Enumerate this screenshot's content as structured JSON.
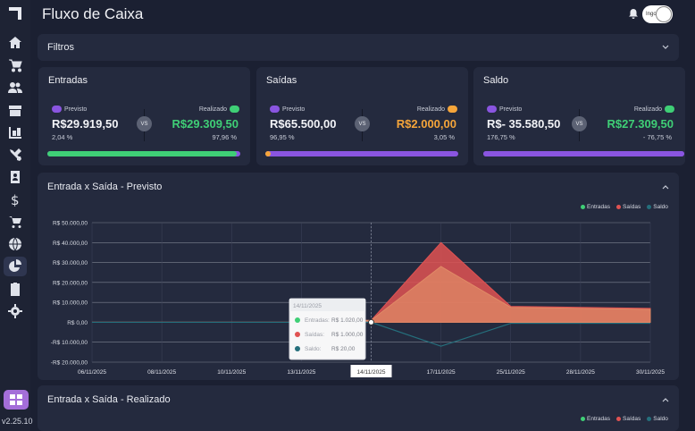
{
  "header": {
    "title": "Fluxo de Caixa",
    "user_name": "Ingor"
  },
  "sidebar": {
    "version": "v2.25.10"
  },
  "filters": {
    "title": "Filtros"
  },
  "cards": [
    {
      "title": "Entradas",
      "previsto_label": "Previsto",
      "previsto_value": "R$29.919,50",
      "previsto_pct": "2,04 %",
      "realizado_label": "Realizado",
      "realizado_value": "R$29.309,50",
      "realizado_pct": "97,96 %",
      "realizado_color": "#3fcf76"
    },
    {
      "title": "Saídas",
      "previsto_label": "Previsto",
      "previsto_value": "R$65.500,00",
      "previsto_pct": "96,95 %",
      "realizado_label": "Realizado",
      "realizado_value": "R$2.000,00",
      "realizado_pct": "3,05 %",
      "realizado_color": "#f5a53a"
    },
    {
      "title": "Saldo",
      "previsto_label": "Previsto",
      "previsto_value": "R$- 35.580,50",
      "previsto_pct": "176,75 %",
      "realizado_label": "Realizado",
      "realizado_value": "R$27.309,50",
      "realizado_pct": "- 76,75 %",
      "realizado_color": "#3fcf76"
    }
  ],
  "vs_label": "VS",
  "colors": {
    "purple": "#8a55e0",
    "green": "#3fcf76",
    "orange": "#f5a53a",
    "red": "#e05252",
    "teal": "#256f7c"
  },
  "chart_data": [
    {
      "type": "area",
      "title": "Entrada x Saída - Previsto",
      "x": [
        "06/11/2025",
        "08/11/2025",
        "10/11/2025",
        "13/11/2025",
        "14/11/2025",
        "17/11/2025",
        "25/11/2025",
        "28/11/2025",
        "30/11/2025"
      ],
      "ylim": [
        -20000,
        50000
      ],
      "yticks": [
        "R$ 50.000,00",
        "R$ 40.000,00",
        "R$ 30.000,00",
        "R$ 20.000,00",
        "R$ 10.000,00",
        "R$ 0,00",
        "-R$ 10.000,00",
        "-R$ 20.000,00"
      ],
      "ytick_values": [
        50000,
        40000,
        30000,
        20000,
        10000,
        0,
        -10000,
        -20000
      ],
      "series": [
        {
          "name": "Entradas",
          "color": "#3fcf76",
          "values": [
            0,
            0,
            0,
            0,
            1020,
            28000,
            7500,
            7000,
            6500
          ]
        },
        {
          "name": "Saídas",
          "color": "#e05252",
          "values": [
            0,
            0,
            0,
            0,
            1000,
            40000,
            8000,
            7500,
            7000
          ]
        },
        {
          "name": "Saldo",
          "color": "#256f7c",
          "values": [
            0,
            0,
            0,
            0,
            20,
            -12000,
            -500,
            -500,
            -500
          ]
        }
      ],
      "tooltip": {
        "date": "14/11/2025",
        "rows": [
          {
            "label": "Entradas:",
            "value": "R$ 1.020,00"
          },
          {
            "label": "Saídas:",
            "value": "R$ 1.000,00"
          },
          {
            "label": "Saldo:",
            "value": "R$ 20,00"
          }
        ]
      },
      "legend": "top-right",
      "grid": true
    },
    {
      "type": "area",
      "title": "Entrada x Saída - Realizado",
      "series": [
        {
          "name": "Entradas",
          "color": "#3fcf76"
        },
        {
          "name": "Saídas",
          "color": "#e05252"
        },
        {
          "name": "Saldo",
          "color": "#256f7c"
        }
      ],
      "legend": "top-right"
    }
  ]
}
